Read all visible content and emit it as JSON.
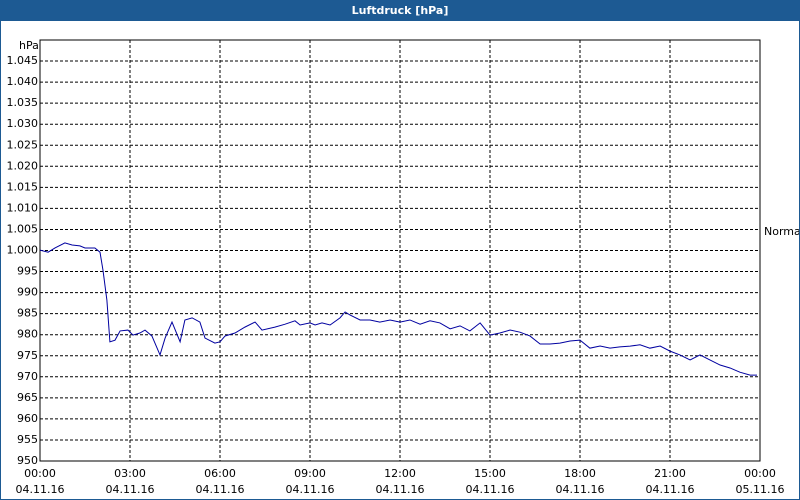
{
  "chart_data": {
    "type": "line",
    "title": "Luftdruck [hPa]",
    "ylabel": "hPa",
    "x": [
      0,
      0.27,
      0.5,
      0.83,
      1.07,
      1.33,
      1.5,
      1.83,
      2,
      2.1,
      2.23,
      2.33,
      2.5,
      2.67,
      2.93,
      3.1,
      3.33,
      3.5,
      3.73,
      4,
      4.17,
      4.4,
      4.67,
      4.83,
      5.07,
      5.33,
      5.5,
      5.83,
      6,
      6.17,
      6.5,
      6.83,
      7.17,
      7.4,
      7.83,
      8.17,
      8.5,
      8.67,
      9,
      9.17,
      9.4,
      9.67,
      10,
      10.17,
      10.33,
      10.67,
      11,
      11.33,
      11.67,
      12,
      12.33,
      12.67,
      13,
      13.33,
      13.67,
      14,
      14.33,
      14.67,
      15,
      15.33,
      15.67,
      16,
      16.33,
      16.67,
      17,
      17.33,
      17.67,
      18,
      18.33,
      18.67,
      19,
      19.33,
      19.67,
      20,
      20.33,
      20.67,
      21,
      21.33,
      21.67,
      22,
      22.33,
      22.67,
      23,
      23.33,
      23.67,
      23.9
    ],
    "series": [
      {
        "name": "Normal",
        "color": "#0000a0",
        "values": [
          1000.1,
          999.6,
          1000.6,
          1001.8,
          1001.3,
          1001.1,
          1000.6,
          1000.6,
          999.6,
          995.3,
          988.2,
          978.3,
          978.7,
          980.9,
          981.1,
          979.9,
          980.4,
          981.1,
          979.7,
          975.2,
          979.2,
          983,
          978.3,
          983.5,
          984,
          983,
          979.2,
          978,
          978.3,
          979.7,
          980.4,
          981.8,
          983,
          981.1,
          981.8,
          982.5,
          983.3,
          982.3,
          982.8,
          982.3,
          982.8,
          982.3,
          984,
          985.4,
          984.7,
          983.5,
          983.5,
          983,
          983.5,
          983,
          983.5,
          982.5,
          983.3,
          982.8,
          981.4,
          982.1,
          980.9,
          982.8,
          979.9,
          980.4,
          981.1,
          980.6,
          979.7,
          977.8,
          977.8,
          978,
          978.5,
          978.7,
          976.8,
          977.3,
          976.8,
          977.1,
          977.3,
          977.6,
          976.8,
          977.3,
          976.1,
          975.2,
          974,
          975.2,
          974,
          972.8,
          972.1,
          971.1,
          970.4,
          970.4
        ]
      }
    ],
    "xlim": [
      0,
      24
    ],
    "xticks": [
      {
        "value": 0,
        "label": "00:00",
        "date": "04.11.16"
      },
      {
        "value": 3,
        "label": "03:00",
        "date": "04.11.16"
      },
      {
        "value": 6,
        "label": "06:00",
        "date": "04.11.16"
      },
      {
        "value": 9,
        "label": "09:00",
        "date": "04.11.16"
      },
      {
        "value": 12,
        "label": "12:00",
        "date": "04.11.16"
      },
      {
        "value": 15,
        "label": "15:00",
        "date": "04.11.16"
      },
      {
        "value": 18,
        "label": "18:00",
        "date": "04.11.16"
      },
      {
        "value": 21,
        "label": "21:00",
        "date": "04.11.16"
      },
      {
        "value": 24,
        "label": "00:00",
        "date": "05.11.16"
      }
    ],
    "ylim": [
      950,
      1050
    ],
    "yticks": [
      950,
      955,
      960,
      965,
      970,
      975,
      980,
      985,
      990,
      995,
      {
        "value": 1000,
        "label": "1.000"
      },
      {
        "value": 1005,
        "label": "1.005"
      },
      {
        "value": 1010,
        "label": "1.010"
      },
      {
        "value": 1015,
        "label": "1.015"
      },
      {
        "value": 1020,
        "label": "1.020"
      },
      {
        "value": 1025,
        "label": "1.025"
      },
      {
        "value": 1030,
        "label": "1.030"
      },
      {
        "value": 1035,
        "label": "1.035"
      },
      {
        "value": 1040,
        "label": "1.040"
      },
      {
        "value": 1045,
        "label": "1.045"
      }
    ],
    "grid": true,
    "legend": "right"
  }
}
